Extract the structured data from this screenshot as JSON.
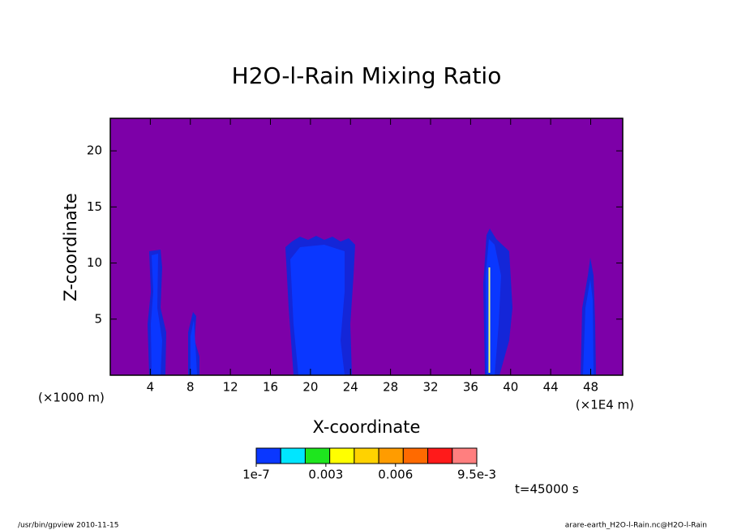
{
  "chart_data": {
    "type": "contour",
    "title": "H2O-l-Rain Mixing Ratio",
    "xlabel": "X-coordinate",
    "ylabel": "Z-coordinate",
    "x_left_note": "(×1000 m)",
    "x_right_note": "(×1E4 m)",
    "time_label": "t=45000 s",
    "xlim": [
      0,
      51.2
    ],
    "xticks": [
      4,
      8,
      12,
      16,
      20,
      24,
      28,
      32,
      36,
      40,
      44,
      48
    ],
    "ylim": [
      0,
      22.9
    ],
    "yticks": [
      5,
      10,
      15,
      20
    ],
    "background_color": "#7d00a8",
    "colorbar": {
      "colors": [
        "#0a37ff",
        "#00e6ff",
        "#1ee61e",
        "#ffff00",
        "#ffd200",
        "#ff9c00",
        "#ff6a00",
        "#ff1a1a",
        "#ff7f7f"
      ],
      "lim": [
        1e-07,
        0.0095
      ],
      "ticks": [
        {
          "value": 1e-07,
          "label": "1e-7"
        },
        0.003,
        0.006,
        {
          "value": 0.0095,
          "label": "9.5e-3"
        }
      ]
    }
  },
  "footer": {
    "left": "/usr/bin/gpview  2010-11-15",
    "right": "arare-earth_H2O-l-Rain.nc@H2O-l-Rain"
  }
}
